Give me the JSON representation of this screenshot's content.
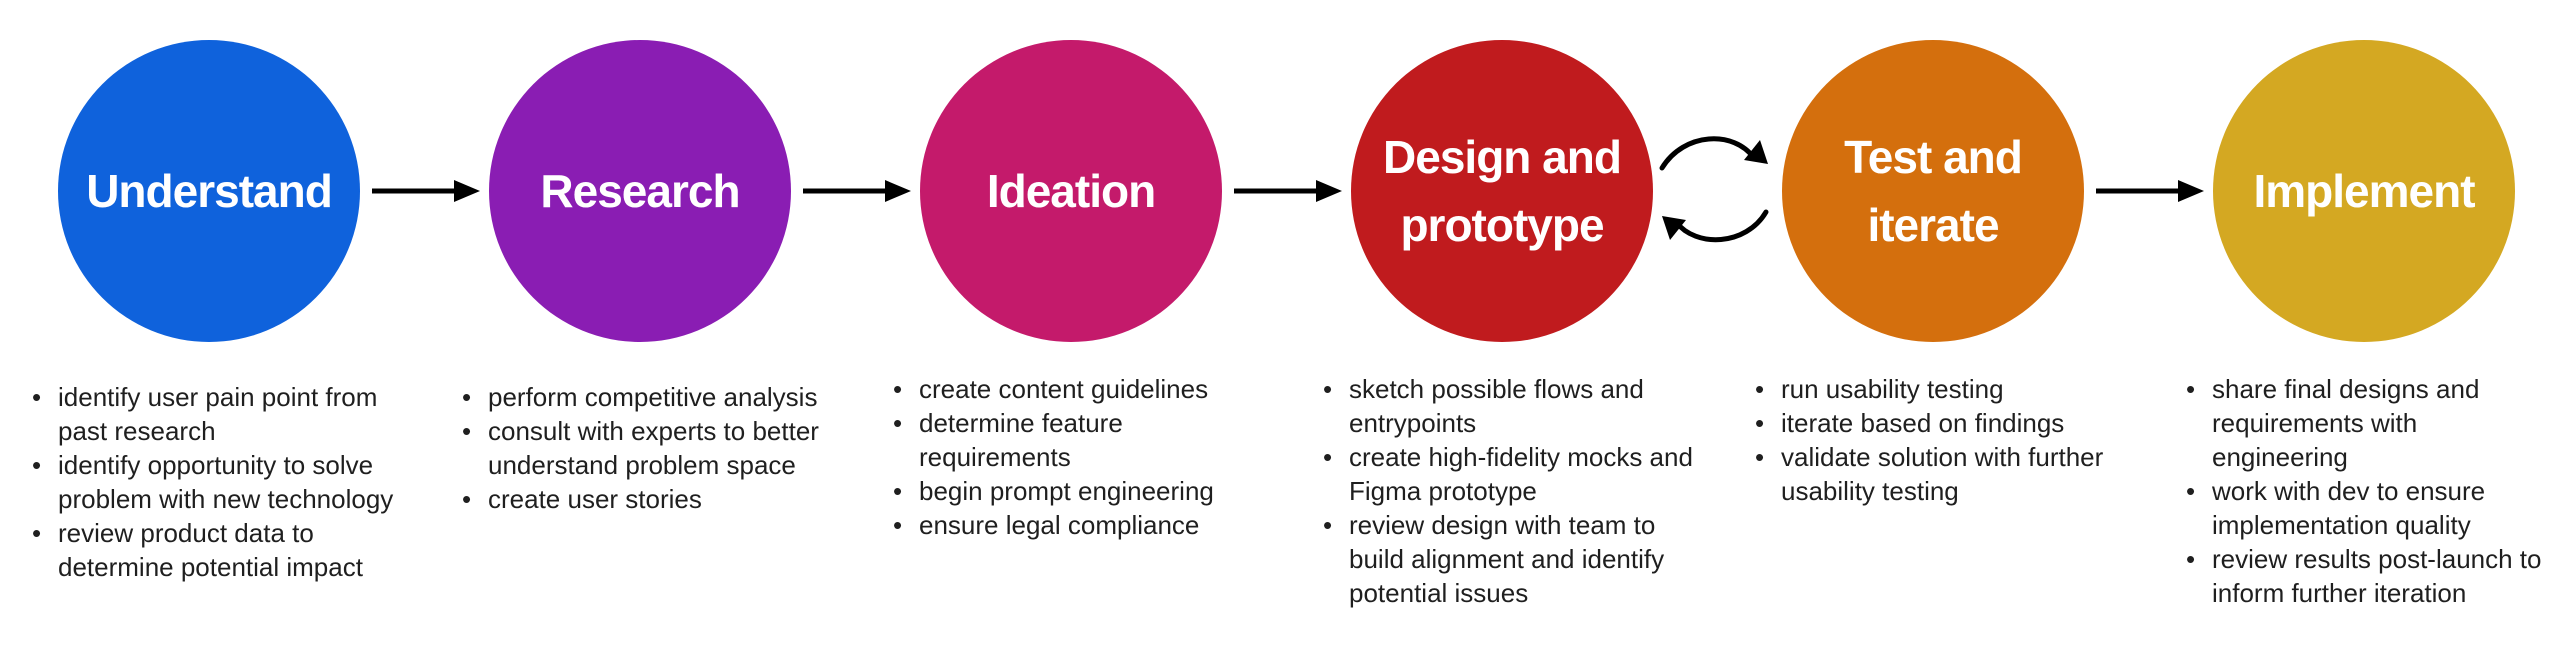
{
  "colors": {
    "understand": "#0f62dc",
    "research": "#8a1db3",
    "ideation": "#c41a6b",
    "design": "#c01b1e",
    "test": "#d46f0d",
    "implement": "#d4a822",
    "arrow": "#000000",
    "text": "#1f1f1f"
  },
  "stages": [
    {
      "title": "Understand",
      "bullets": [
        "identify user pain point from past research",
        "identify opportunity to solve problem with new technology",
        "review product data to determine potential impact"
      ]
    },
    {
      "title": "Research",
      "bullets": [
        "perform competitive analysis",
        "consult with experts to better understand problem space",
        "create user stories"
      ]
    },
    {
      "title": "Ideation",
      "bullets": [
        "create content guidelines",
        "determine feature requirements",
        "begin prompt engineering",
        "ensure legal compliance"
      ]
    },
    {
      "title": "Design and\nprototype",
      "bullets": [
        "sketch possible flows and entrypoints",
        "create high-fidelity mocks and Figma prototype",
        "review design with team to build alignment and identify potential issues"
      ]
    },
    {
      "title": "Test and\niterate",
      "bullets": [
        "run usability testing",
        "iterate based on findings",
        "validate solution with further usability testing"
      ]
    },
    {
      "title": "Implement",
      "bullets": [
        "share final designs and requirements with engineering",
        "work with dev to ensure implementation quality",
        "review results post-launch to inform further iteration"
      ]
    }
  ],
  "bullet_symbol": "•"
}
